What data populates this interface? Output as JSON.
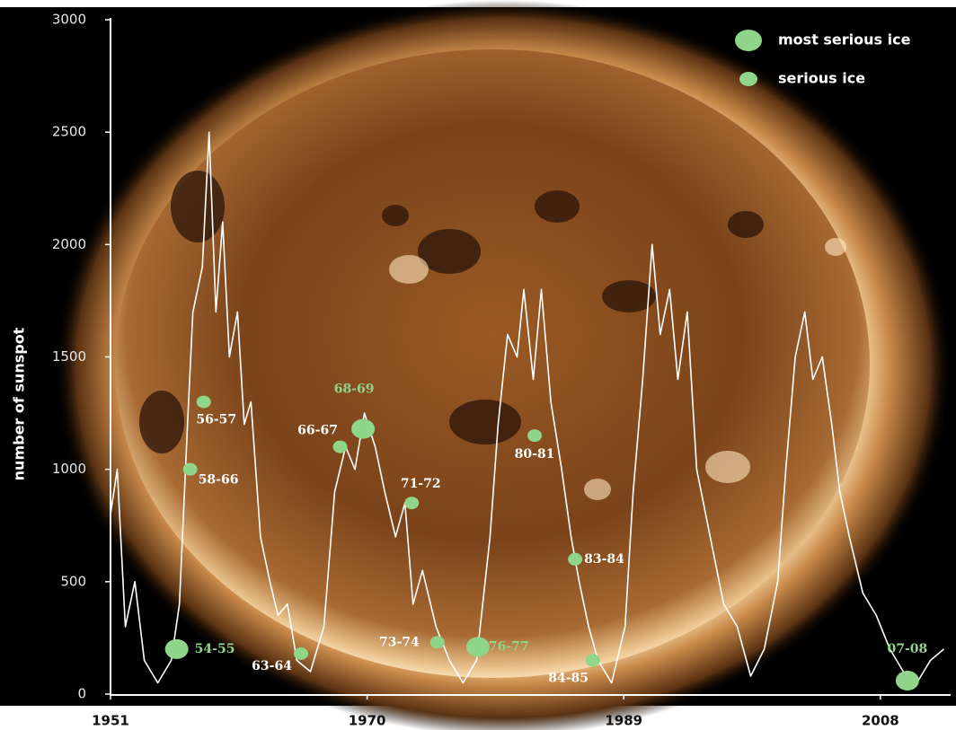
{
  "chart_data": {
    "type": "line",
    "y_label": "number of sunspot",
    "xlim": [
      1951,
      2013
    ],
    "xticks": [
      1951,
      1970,
      1989,
      2008
    ],
    "ylim": [
      0,
      3000
    ],
    "yticks": [
      0,
      500,
      1000,
      1500,
      2000,
      2500,
      3000
    ],
    "line": {
      "color": "#ffffff",
      "x": [
        1951.0,
        1951.5,
        1952.1,
        1952.8,
        1953.5,
        1954.5,
        1955.5,
        1956.1,
        1956.7,
        1957.1,
        1957.8,
        1958.3,
        1958.8,
        1959.3,
        1959.8,
        1960.4,
        1960.9,
        1961.4,
        1962.1,
        1962.8,
        1963.4,
        1964.1,
        1964.8,
        1965.8,
        1966.8,
        1967.6,
        1968.4,
        1969.1,
        1969.8,
        1970.6,
        1971.3,
        1972.1,
        1972.8,
        1973.4,
        1974.1,
        1975.1,
        1976.1,
        1977.1,
        1978.1,
        1979.1,
        1979.7,
        1980.4,
        1981.1,
        1981.6,
        1982.3,
        1982.9,
        1983.6,
        1984.4,
        1985.1,
        1985.7,
        1986.4,
        1987.1,
        1988.1,
        1989.1,
        1989.7,
        1990.4,
        1991.1,
        1991.7,
        1992.4,
        1993.0,
        1993.7,
        1994.4,
        1995.4,
        1996.4,
        1997.4,
        1998.4,
        1999.4,
        2000.4,
        2001.0,
        2001.7,
        2002.4,
        2003.0,
        2003.7,
        2004.4,
        2005.0,
        2005.7,
        2006.7,
        2007.7,
        2008.7,
        2009.7,
        2010.7,
        2011.7,
        2012.7
      ],
      "values": [
        800,
        1000,
        300,
        500,
        150,
        50,
        150,
        400,
        1200,
        1700,
        1900,
        2500,
        1700,
        2100,
        1500,
        1700,
        1200,
        1300,
        700,
        500,
        350,
        400,
        150,
        100,
        300,
        900,
        1100,
        1000,
        1250,
        1100,
        900,
        700,
        850,
        400,
        550,
        300,
        150,
        50,
        150,
        700,
        1200,
        1600,
        1500,
        1800,
        1400,
        1800,
        1300,
        1000,
        700,
        500,
        300,
        150,
        50,
        300,
        900,
        1400,
        2000,
        1600,
        1800,
        1400,
        1700,
        1000,
        700,
        400,
        300,
        80,
        200,
        500,
        1000,
        1500,
        1700,
        1400,
        1500,
        1200,
        900,
        700,
        450,
        350,
        200,
        100,
        50,
        150,
        200
      ]
    },
    "markers": [
      {
        "name": "most serious ice",
        "color": "#8fd68a",
        "points": [
          {
            "label": "54-55",
            "x": 1955.9,
            "y": 200
          },
          {
            "label": "68-69",
            "x": 1969.7,
            "y": 1180
          },
          {
            "label": "76-77",
            "x": 1978.2,
            "y": 210
          },
          {
            "label": "07-08",
            "x": 2010.0,
            "y": 60
          }
        ]
      },
      {
        "name": "serious ice",
        "color": "#8fd68a",
        "points": [
          {
            "label": "56-57",
            "x": 1957.9,
            "y": 1300
          },
          {
            "label": "58-66",
            "x": 1956.9,
            "y": 1000
          },
          {
            "label": "63-64",
            "x": 1965.1,
            "y": 180
          },
          {
            "label": "66-67",
            "x": 1968.0,
            "y": 1100
          },
          {
            "label": "71-72",
            "x": 1973.3,
            "y": 850
          },
          {
            "label": "73-74",
            "x": 1975.2,
            "y": 230
          },
          {
            "label": "80-81",
            "x": 1982.4,
            "y": 1150
          },
          {
            "label": "83-84",
            "x": 1985.4,
            "y": 600
          },
          {
            "label": "84-85",
            "x": 1986.7,
            "y": 150
          }
        ]
      }
    ]
  }
}
